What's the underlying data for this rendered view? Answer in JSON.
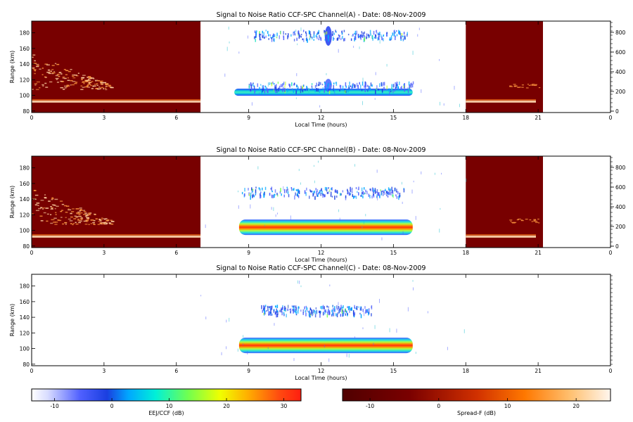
{
  "panels": [
    {
      "title": "Signal to Noise Ratio CCF-SPC Channel(A) - Date: 08-Nov-2009",
      "xlabel": "Local Time (hours)",
      "ylabel": "Range (km)",
      "xticks": [
        "0",
        "3",
        "6",
        "9",
        "12",
        "15",
        "18",
        "21",
        "0"
      ],
      "yticks": [
        "80",
        "100",
        "120",
        "140",
        "160",
        "180"
      ],
      "rticks": [
        "0",
        "200",
        "400",
        "600",
        "800"
      ],
      "spread_f_blocks": [
        [
          0,
          7
        ],
        [
          18,
          21.2
        ]
      ],
      "plasma_layers": [
        {
          "t0": 8.4,
          "t1": 15.8,
          "range": 104,
          "kind": "strong-A"
        },
        {
          "t0": 9.0,
          "t1": 15.8,
          "range": 112,
          "kind": "weak"
        },
        {
          "t0": 9.2,
          "t1": 15.6,
          "range": 178,
          "kind": "weak"
        }
      ]
    },
    {
      "title": "Signal to Noise Ratio CCF-SPC Channel(B) - Date: 08-Nov-2009",
      "xlabel": "Local Time (hours)",
      "ylabel": "Range (km)",
      "xticks": [
        "0",
        "3",
        "6",
        "9",
        "12",
        "15",
        "18",
        "21",
        "0"
      ],
      "yticks": [
        "80",
        "100",
        "120",
        "140",
        "160",
        "180"
      ],
      "rticks": [
        "0",
        "200",
        "400",
        "600",
        "800"
      ],
      "spread_f_blocks": [
        [
          0,
          7
        ],
        [
          18,
          21.2
        ]
      ],
      "plasma_layers": [
        {
          "t0": 8.6,
          "t1": 15.8,
          "range": 104,
          "kind": "strong"
        },
        {
          "t0": 8.7,
          "t1": 15.5,
          "range": 150,
          "kind": "weak"
        }
      ]
    },
    {
      "title": "Signal to Noise Ratio CCF-SPC Channel(C) - Date: 08-Nov-2009",
      "xlabel": "Local Time (hours)",
      "ylabel": "Range (km)",
      "xticks": [
        "0",
        "3",
        "6",
        "9",
        "12",
        "15",
        "18",
        "21",
        "0"
      ],
      "yticks": [
        "80",
        "100",
        "120",
        "140",
        "160",
        "180"
      ],
      "rticks": [],
      "spread_f_blocks": [],
      "plasma_layers": [
        {
          "t0": 8.6,
          "t1": 15.8,
          "range": 104,
          "kind": "strong"
        },
        {
          "t0": 9.5,
          "t1": 14.1,
          "range": 150,
          "kind": "weak"
        }
      ]
    }
  ],
  "colorbars": [
    {
      "label": "EEJ/CCF (dB)",
      "ticks": [
        "-10",
        "0",
        "10",
        "20",
        "30"
      ],
      "range": [
        -14,
        33
      ],
      "scale": "rainbow"
    },
    {
      "label": "Spread-F (dB)",
      "ticks": [
        "-10",
        "0",
        "10",
        "20"
      ],
      "range": [
        -14,
        25
      ],
      "scale": "heat"
    }
  ],
  "chart_data": {
    "type": "heatmap",
    "date": "08-Nov-2009",
    "x_range_hours": [
      0,
      24
    ],
    "y_range_km": [
      78,
      195
    ],
    "right_axis_range": [
      0,
      900
    ],
    "grid": false
  }
}
